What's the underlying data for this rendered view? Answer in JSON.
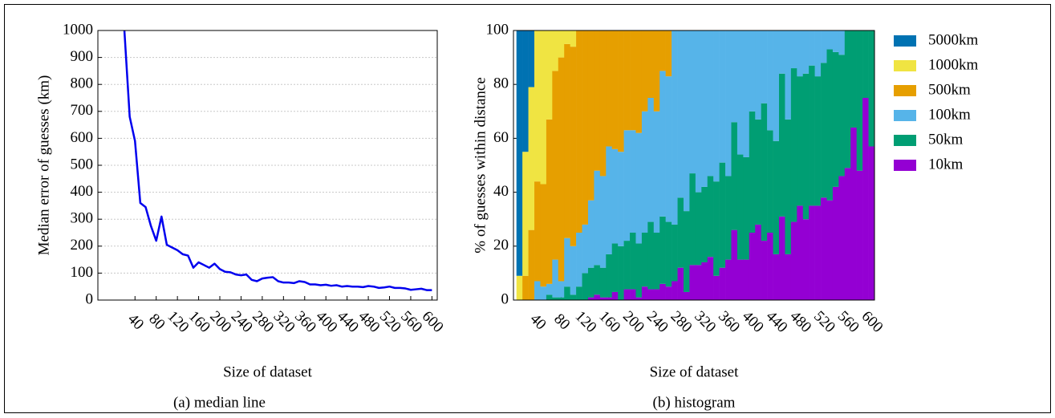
{
  "chart_data": [
    {
      "type": "line",
      "axis_label_x": "Size of dataset",
      "axis_label_y": "Median error of guesses (km)",
      "caption": "(a) median line",
      "x": [
        20,
        30,
        40,
        50,
        60,
        70,
        80,
        90,
        100,
        110,
        120,
        130,
        140,
        150,
        160,
        170,
        180,
        190,
        200,
        210,
        220,
        230,
        240,
        250,
        260,
        270,
        280,
        290,
        300,
        310,
        320,
        330,
        340,
        350,
        360,
        370,
        380,
        390,
        400,
        410,
        420,
        430,
        440,
        450,
        460,
        470,
        480,
        490,
        500,
        510,
        520,
        530,
        540,
        550,
        560,
        570,
        580,
        590,
        600
      ],
      "values": [
        1000,
        680,
        590,
        360,
        345,
        275,
        220,
        310,
        205,
        195,
        185,
        170,
        165,
        120,
        140,
        130,
        120,
        135,
        115,
        105,
        103,
        95,
        92,
        95,
        75,
        70,
        80,
        83,
        85,
        70,
        65,
        65,
        63,
        70,
        67,
        58,
        58,
        55,
        57,
        53,
        55,
        50,
        52,
        50,
        50,
        48,
        52,
        50,
        45,
        47,
        50,
        45,
        45,
        43,
        38,
        40,
        42,
        37,
        37
      ],
      "color": "#0000ee",
      "xlim": [
        -30,
        610
      ],
      "ylim": [
        0,
        1000
      ],
      "xticks": [
        40,
        80,
        120,
        160,
        200,
        240,
        280,
        320,
        360,
        400,
        440,
        480,
        520,
        560,
        600
      ],
      "yticks": [
        0,
        100,
        200,
        300,
        400,
        500,
        600,
        700,
        800,
        900,
        1000
      ],
      "grid": true
    },
    {
      "type": "bar",
      "stacked": true,
      "axis_label_x": "Size of dataset",
      "axis_label_y": "% of guesses within distance",
      "caption": "(b) histogram",
      "x": [
        10,
        20,
        30,
        40,
        50,
        60,
        70,
        80,
        90,
        100,
        110,
        120,
        130,
        140,
        150,
        160,
        170,
        180,
        190,
        200,
        210,
        220,
        230,
        240,
        250,
        260,
        270,
        280,
        290,
        300,
        310,
        320,
        330,
        340,
        350,
        360,
        370,
        380,
        390,
        400,
        410,
        420,
        430,
        440,
        450,
        460,
        470,
        480,
        490,
        500,
        510,
        520,
        530,
        540,
        550,
        560,
        570,
        580,
        590,
        600
      ],
      "series": [
        {
          "name": "5000km",
          "color": "#0072b2",
          "values": [
            91,
            45,
            21,
            0,
            0,
            0,
            0,
            0,
            0,
            0,
            0,
            0,
            0,
            0,
            0,
            0,
            0,
            0,
            0,
            0,
            0,
            0,
            0,
            0,
            0,
            0,
            0,
            0,
            0,
            0,
            0,
            0,
            0,
            0,
            0,
            0,
            0,
            0,
            0,
            0,
            0,
            0,
            0,
            0,
            0,
            0,
            0,
            0,
            0,
            0,
            0,
            0,
            0,
            0,
            0,
            0,
            0,
            0,
            0,
            0
          ]
        },
        {
          "name": "1000km",
          "color": "#f0e442",
          "values": [
            9,
            46,
            53,
            56,
            57,
            33,
            15,
            10,
            5,
            6,
            0,
            0,
            0,
            0,
            0,
            0,
            0,
            0,
            0,
            0,
            0,
            0,
            0,
            0,
            0,
            0,
            0,
            0,
            0,
            0,
            0,
            0,
            0,
            0,
            0,
            0,
            0,
            0,
            0,
            0,
            0,
            0,
            0,
            0,
            0,
            0,
            0,
            0,
            0,
            0,
            0,
            0,
            0,
            0,
            0,
            0,
            0,
            0,
            0,
            0
          ]
        },
        {
          "name": "500km",
          "color": "#e69f00",
          "values": [
            0,
            9,
            26,
            37,
            38,
            61,
            70,
            83,
            72,
            74,
            75,
            72,
            63,
            52,
            54,
            43,
            44,
            45,
            37,
            37,
            38,
            30,
            25,
            30,
            15,
            17,
            0,
            0,
            0,
            0,
            0,
            0,
            0,
            0,
            0,
            0,
            0,
            0,
            0,
            0,
            0,
            0,
            0,
            0,
            0,
            0,
            0,
            0,
            0,
            0,
            0,
            0,
            0,
            0,
            0,
            0,
            0,
            0,
            0,
            0
          ]
        },
        {
          "name": "100km",
          "color": "#56b4e9",
          "values": [
            0,
            0,
            0,
            7,
            5,
            4,
            14,
            6,
            18,
            18,
            20,
            18,
            25,
            35,
            34,
            40,
            35,
            35,
            41,
            38,
            41,
            45,
            46,
            45,
            54,
            54,
            72,
            62,
            67,
            53,
            60,
            58,
            54,
            56,
            49,
            54,
            34,
            46,
            47,
            30,
            33,
            27,
            37,
            41,
            16,
            33,
            14,
            17,
            16,
            13,
            17,
            12,
            7,
            8,
            9,
            0,
            0,
            0,
            0,
            0
          ]
        },
        {
          "name": "50km",
          "color": "#009e73",
          "values": [
            0,
            0,
            0,
            0,
            0,
            2,
            1,
            1,
            5,
            2,
            5,
            10,
            11,
            11,
            11,
            16,
            18,
            20,
            18,
            21,
            20,
            20,
            25,
            21,
            25,
            24,
            21,
            26,
            30,
            34,
            27,
            28,
            30,
            35,
            39,
            31,
            40,
            39,
            38,
            45,
            39,
            51,
            38,
            42,
            53,
            50,
            57,
            48,
            54,
            52,
            48,
            50,
            56,
            50,
            45,
            51,
            36,
            52,
            25,
            43
          ]
        },
        {
          "name": "10km",
          "color": "#9400d3",
          "values": [
            0,
            0,
            0,
            0,
            0,
            0,
            0,
            0,
            0,
            0,
            0,
            0,
            1,
            2,
            1,
            1,
            3,
            0,
            4,
            4,
            1,
            5,
            4,
            4,
            6,
            5,
            7,
            12,
            3,
            13,
            13,
            14,
            16,
            9,
            12,
            15,
            26,
            15,
            15,
            25,
            28,
            22,
            25,
            17,
            31,
            17,
            29,
            35,
            30,
            35,
            35,
            38,
            37,
            42,
            46,
            49,
            64,
            48,
            75,
            57
          ]
        }
      ],
      "xlim": [
        0,
        605
      ],
      "ylim": [
        0,
        100
      ],
      "xticks": [
        40,
        80,
        120,
        160,
        200,
        240,
        280,
        320,
        360,
        400,
        440,
        480,
        520,
        560,
        600
      ],
      "yticks": [
        0,
        20,
        40,
        60,
        80,
        100
      ],
      "grid": false
    }
  ]
}
